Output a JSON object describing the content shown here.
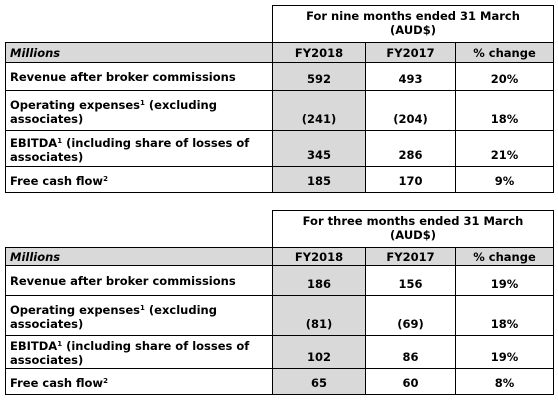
{
  "tables": [
    {
      "period": "For nine months ended 31 March",
      "currency": "(AUD$)",
      "unit": "Millions",
      "columns": [
        "FY2018",
        "FY2017",
        "% change"
      ],
      "rows": [
        {
          "label": "Revenue after broker commissions",
          "values": [
            "592",
            "493",
            "20%"
          ]
        },
        {
          "label": "Operating expenses",
          "note": "1",
          "label_rest": "(excluding associates)",
          "values": [
            "(241)",
            "(204)",
            "18%"
          ]
        },
        {
          "label": "EBITDA",
          "note": "1",
          "label_rest": "(including share of losses of associates)",
          "values": [
            "345",
            "286",
            "21%"
          ]
        },
        {
          "label": "Free cash flow",
          "note": "2",
          "values": [
            "185",
            "170",
            "9%"
          ]
        }
      ]
    },
    {
      "period": "For three months ended 31 March",
      "currency": "(AUD$)",
      "unit": "Millions",
      "columns": [
        "FY2018",
        "FY2017",
        "% change"
      ],
      "rows": [
        {
          "label": "Revenue after broker commissions",
          "values": [
            "186",
            "156",
            "19%"
          ]
        },
        {
          "label": "Operating expenses",
          "note": "1",
          "label_rest": "(excluding associates)",
          "values": [
            "(81)",
            "(69)",
            "18%"
          ]
        },
        {
          "label": "EBITDA",
          "note": "1",
          "label_rest": "(including share of losses of associates)",
          "values": [
            "102",
            "86",
            "19%"
          ]
        },
        {
          "label": "Free cash flow",
          "note": "2",
          "values": [
            "65",
            "60",
            "8%"
          ]
        }
      ]
    }
  ]
}
